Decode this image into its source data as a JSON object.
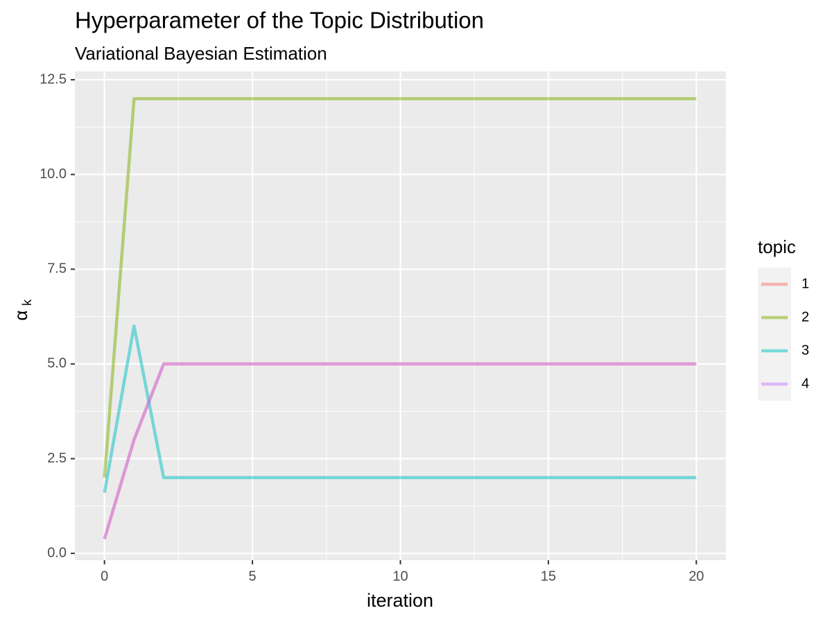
{
  "chart_data": {
    "type": "line",
    "title": "Hyperparameter of the Topic Distribution",
    "subtitle": "Variational Bayesian Estimation",
    "xlabel": "iteration",
    "ylabel": "α",
    "ylabel_subscript": "k",
    "legend_title": "topic",
    "legend_position": "right",
    "line_alpha": 0.5,
    "x": [
      0,
      1,
      2,
      3,
      4,
      5,
      6,
      7,
      8,
      9,
      10,
      11,
      12,
      13,
      14,
      15,
      16,
      17,
      18,
      19,
      20
    ],
    "series": [
      {
        "name": "1",
        "color": "#F8766D",
        "values": [
          0.38,
          3.0,
          5.0,
          5.0,
          5.0,
          5.0,
          5.0,
          5.0,
          5.0,
          5.0,
          5.0,
          5.0,
          5.0,
          5.0,
          5.0,
          5.0,
          5.0,
          5.0,
          5.0,
          5.0,
          5.0
        ]
      },
      {
        "name": "2",
        "color": "#7CAE00",
        "values": [
          2.0,
          12.0,
          12.0,
          12.0,
          12.0,
          12.0,
          12.0,
          12.0,
          12.0,
          12.0,
          12.0,
          12.0,
          12.0,
          12.0,
          12.0,
          12.0,
          12.0,
          12.0,
          12.0,
          12.0,
          12.0
        ]
      },
      {
        "name": "3",
        "color": "#00BFC4",
        "values": [
          1.6,
          6.0,
          2.0,
          2.0,
          2.0,
          2.0,
          2.0,
          2.0,
          2.0,
          2.0,
          2.0,
          2.0,
          2.0,
          2.0,
          2.0,
          2.0,
          2.0,
          2.0,
          2.0,
          2.0,
          2.0
        ]
      },
      {
        "name": "4",
        "color": "#C77CFF",
        "values": [
          0.38,
          3.0,
          5.0,
          5.0,
          5.0,
          5.0,
          5.0,
          5.0,
          5.0,
          5.0,
          5.0,
          5.0,
          5.0,
          5.0,
          5.0,
          5.0,
          5.0,
          5.0,
          5.0,
          5.0,
          5.0
        ]
      }
    ],
    "xlim": [
      -1,
      21
    ],
    "ylim": [
      -0.18,
      12.72
    ],
    "xticks": [
      0,
      5,
      10,
      15,
      20
    ],
    "yticks": [
      {
        "value": 0,
        "label": "0.0"
      },
      {
        "value": 2.5,
        "label": "2.5"
      },
      {
        "value": 5,
        "label": "5.0"
      },
      {
        "value": 7.5,
        "label": "7.5"
      },
      {
        "value": 10,
        "label": "10.0"
      },
      {
        "value": 12.5,
        "label": "12.5"
      }
    ],
    "xminor": [
      2.5,
      7.5,
      12.5,
      17.5
    ],
    "yminor": [
      1.25,
      3.75,
      6.25,
      8.75,
      11.25
    ],
    "grid": true
  }
}
